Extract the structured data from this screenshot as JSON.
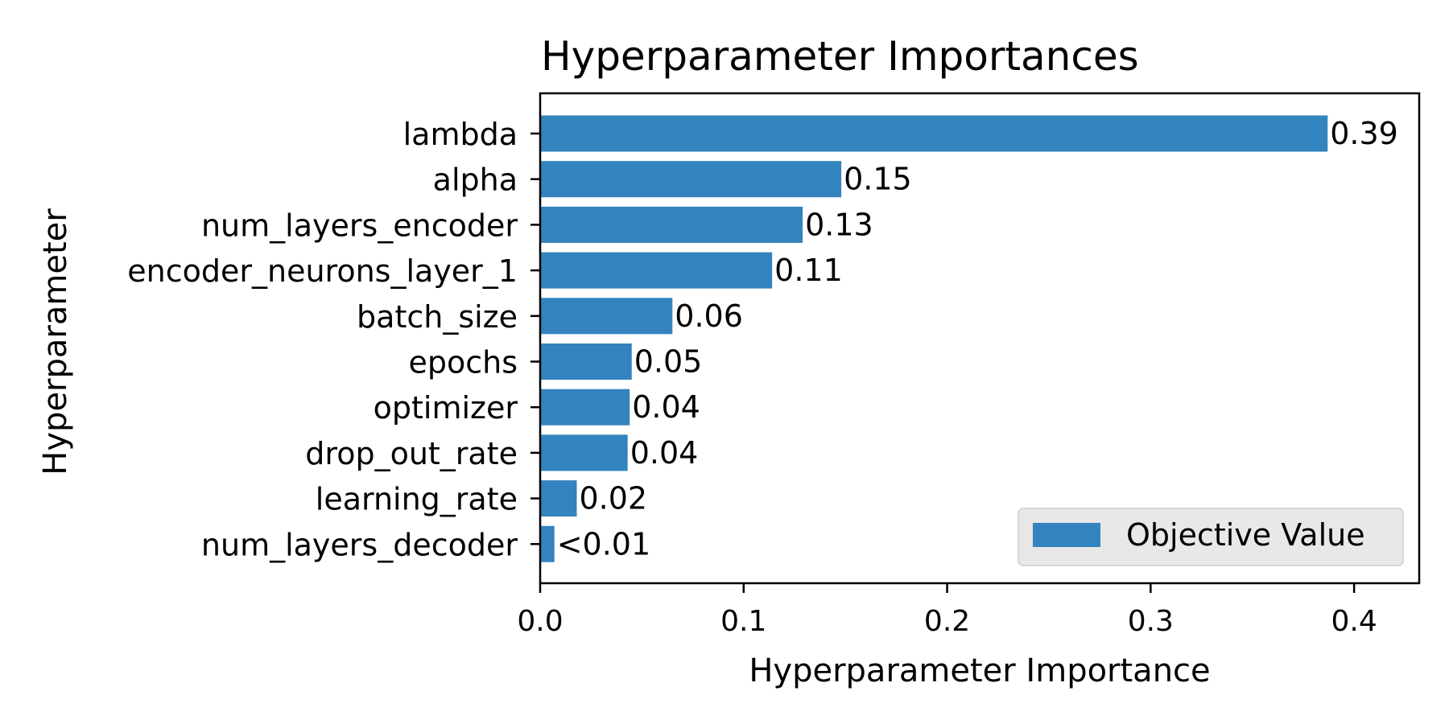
{
  "chart_data": {
    "type": "bar",
    "orientation": "horizontal",
    "title": "Hyperparameter Importances",
    "xlabel": "Hyperparameter Importance",
    "ylabel": "Hyperparameter",
    "xlim": [
      0,
      0.432
    ],
    "xticks": [
      "0.0",
      "0.1",
      "0.2",
      "0.3",
      "0.4"
    ],
    "grid": false,
    "legend": {
      "position": "lower right",
      "entries": [
        "Objective Value"
      ]
    },
    "categories": [
      "lambda",
      "alpha",
      "num_layers_encoder",
      "encoder_neurons_layer_1",
      "batch_size",
      "epochs",
      "optimizer",
      "drop_out_rate",
      "learning_rate",
      "num_layers_decoder"
    ],
    "series": [
      {
        "name": "Objective Value",
        "color": "#3383be",
        "values": [
          0.387,
          0.148,
          0.129,
          0.114,
          0.065,
          0.045,
          0.044,
          0.043,
          0.018,
          0.007
        ],
        "labels": [
          "0.39",
          "0.15",
          "0.13",
          "0.11",
          "0.06",
          "0.05",
          "0.04",
          "0.04",
          "0.02",
          "<0.01"
        ]
      }
    ]
  }
}
